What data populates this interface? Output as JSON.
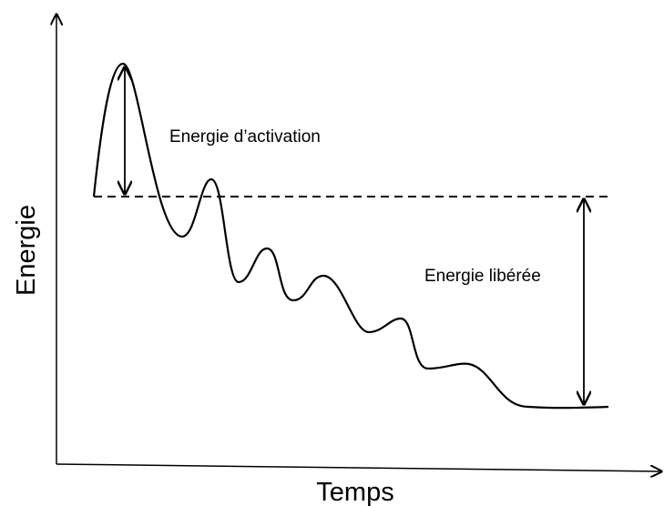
{
  "diagram": {
    "y_axis_label": "Energie",
    "x_axis_label": "Temps",
    "annotations": [
      "Energie d’activation",
      "Energie libérée"
    ]
  }
}
